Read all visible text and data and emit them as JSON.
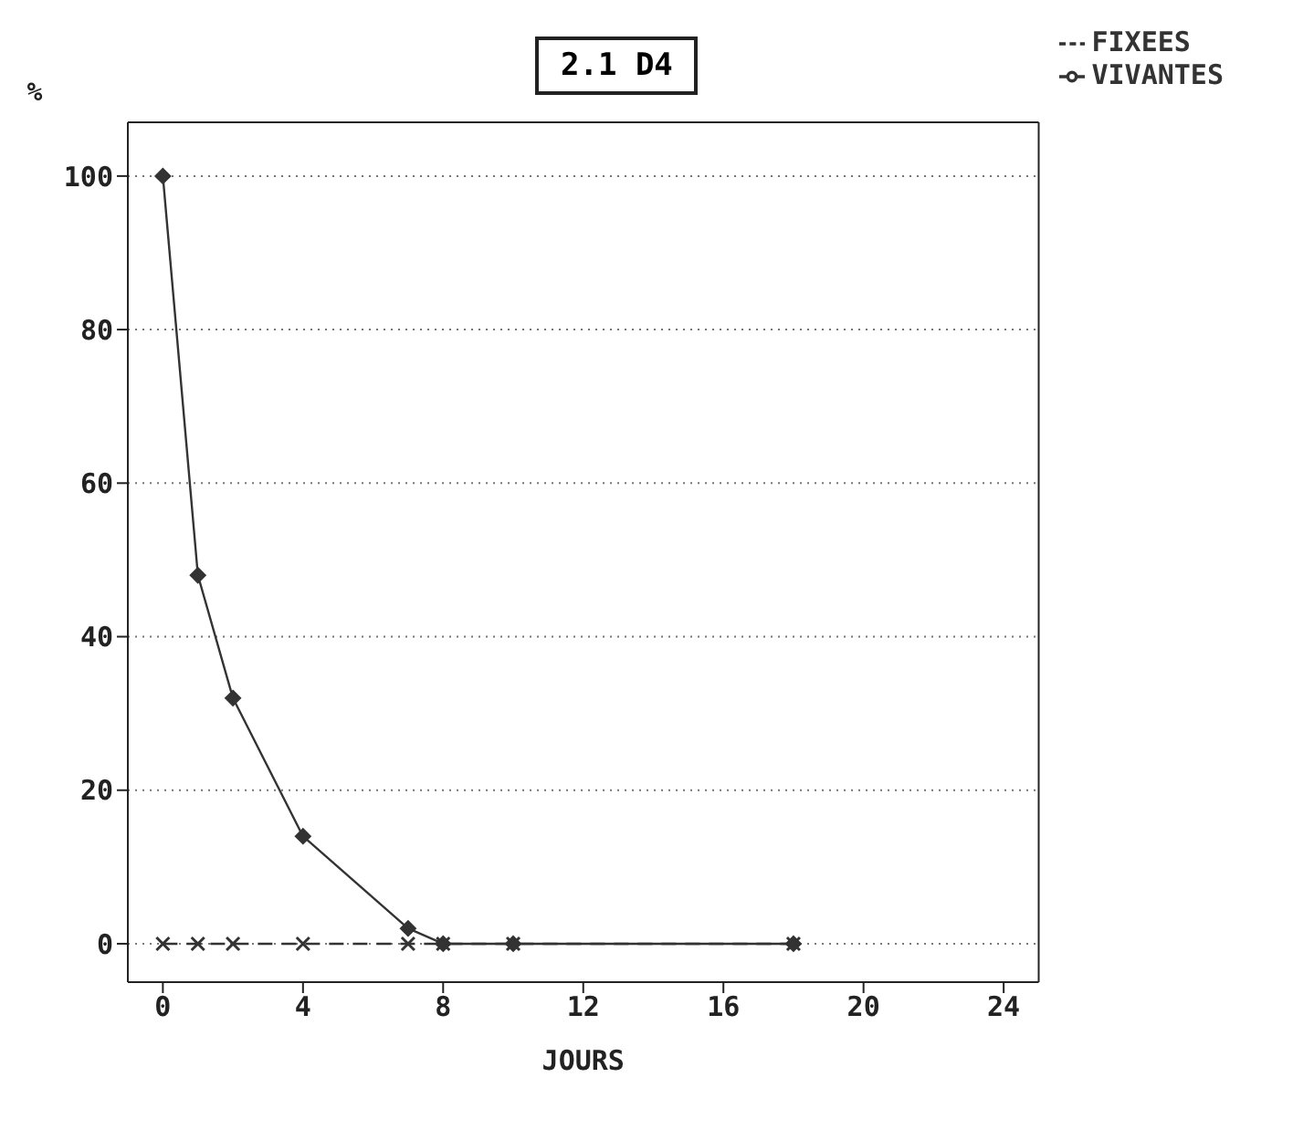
{
  "chart_data": {
    "type": "line",
    "title": "2.1 D4",
    "xlabel": "JOURS",
    "ylabel": "%",
    "x": [
      0,
      1,
      2,
      4,
      7,
      8,
      10,
      18
    ],
    "series": [
      {
        "name": "VIVANTES",
        "color": "#333333",
        "values": [
          100,
          48,
          32,
          14,
          2,
          0,
          0,
          0
        ],
        "marker": "diamond",
        "line_style": "solid"
      },
      {
        "name": "FIXEES",
        "color": "#333333",
        "values": [
          0,
          0,
          0,
          0,
          0,
          0,
          0,
          0
        ],
        "marker": "cross",
        "line_style": "dashed"
      }
    ],
    "xlim": [
      -1,
      25
    ],
    "xticks": [
      0,
      4,
      8,
      12,
      16,
      20,
      24
    ],
    "ylim": [
      -5,
      107
    ],
    "yticks": [
      0,
      20,
      40,
      60,
      80,
      100
    ],
    "grid": "y",
    "legend": "top right"
  }
}
